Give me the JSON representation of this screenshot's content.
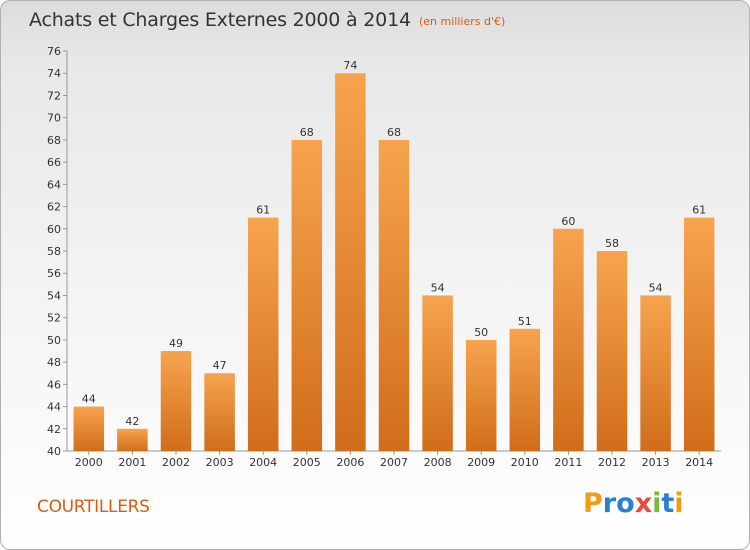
{
  "header": {
    "title": "Achats et Charges Externes 2000 à 2014",
    "subtitle": "(en milliers d'€)"
  },
  "footer": {
    "commune": "COURTILLERS",
    "logo": [
      "P",
      "r",
      "o",
      "x",
      "i",
      "t",
      "i"
    ],
    "logo_colors": [
      "#f39c12",
      "#2a7fd4",
      "#2a7fd4",
      "#e74c3c",
      "#7cb83a",
      "#2a7fd4",
      "#f39c12"
    ]
  },
  "chart_data": {
    "type": "bar",
    "title": "Achats et Charges Externes 2000 à 2014",
    "subtitle": "(en milliers d'€)",
    "categories": [
      "2000",
      "2001",
      "2002",
      "2003",
      "2004",
      "2005",
      "2006",
      "2007",
      "2008",
      "2009",
      "2010",
      "2011",
      "2012",
      "2013",
      "2014"
    ],
    "values": [
      44,
      42,
      49,
      47,
      61,
      68,
      74,
      68,
      54,
      50,
      51,
      60,
      58,
      54,
      61
    ],
    "ylim": [
      40,
      76
    ],
    "ytick_step": 2,
    "grid": false,
    "bar_color_top": "#f7a44e",
    "bar_color_bottom": "#d06d1a",
    "axis_color": "#999999"
  }
}
